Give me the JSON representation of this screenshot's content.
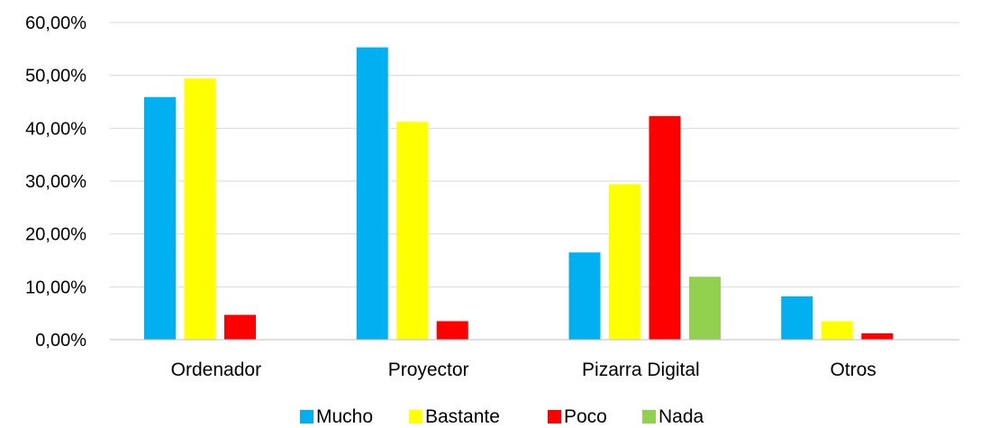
{
  "chart_data": {
    "type": "bar",
    "title": "",
    "xlabel": "",
    "ylabel": "",
    "categories": [
      "Ordenador",
      "Proyector",
      "Pizarra Digital",
      "Otros"
    ],
    "series": [
      {
        "name": "Mucho",
        "color": "#00B0F0",
        "values": [
          45.9,
          55.3,
          16.5,
          8.2
        ]
      },
      {
        "name": "Bastante",
        "color": "#FFFF00",
        "values": [
          49.4,
          41.2,
          29.4,
          3.5
        ]
      },
      {
        "name": "Poco",
        "color": "#FF0000",
        "values": [
          4.7,
          3.5,
          42.3,
          1.2
        ]
      },
      {
        "name": "Nada",
        "color": "#92D050",
        "values": [
          0,
          0,
          11.9,
          0
        ]
      }
    ],
    "ylim": [
      0,
      60
    ],
    "yticks": [
      "0,00%",
      "10,00%",
      "20,00%",
      "30,00%",
      "40,00%",
      "50,00%",
      "60,00%"
    ],
    "grid": true,
    "legend_position": "bottom"
  }
}
